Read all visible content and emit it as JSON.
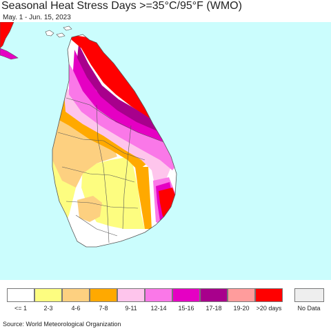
{
  "title": "Seasonal Heat Stress Days >=35°C/95°F (WMO)",
  "subtitle": "May. 1 - Jun. 15, 2023",
  "source": "Source: World Meteorological Organization",
  "colors": {
    "ocean": "#cbfdfd",
    "land_base": "#ffffff",
    "border": "#555555"
  },
  "legend": {
    "items": [
      {
        "label": "<= 1",
        "color": "#ffffff"
      },
      {
        "label": "2-3",
        "color": "#fdfd80"
      },
      {
        "label": "4-6",
        "color": "#fdd080"
      },
      {
        "label": "7-8",
        "color": "#ffa900"
      },
      {
        "label": "9-11",
        "color": "#fec5ec"
      },
      {
        "label": "12-14",
        "color": "#fa78e8"
      },
      {
        "label": "15-16",
        "color": "#e500c3"
      },
      {
        "label": "17-18",
        "color": "#a8008c"
      },
      {
        "label": "19-20",
        "color": "#ff9c9c"
      },
      {
        "label": ">20 days",
        "color": "#ff0000"
      }
    ],
    "no_data": {
      "label": "No Data",
      "color": "#eeeeee"
    }
  }
}
